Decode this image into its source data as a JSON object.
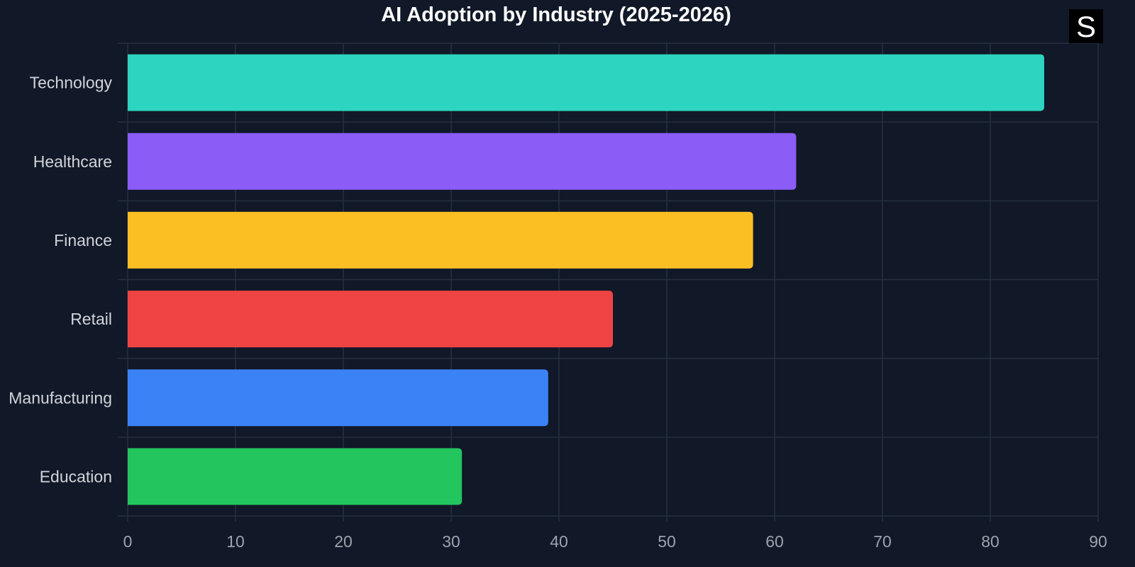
{
  "chart_data": {
    "type": "bar",
    "orientation": "horizontal",
    "title": "AI Adoption by Industry (2025-2026)",
    "xlabel": "",
    "ylabel": "",
    "categories": [
      "Technology",
      "Healthcare",
      "Finance",
      "Retail",
      "Manufacturing",
      "Education"
    ],
    "values": [
      85,
      62,
      58,
      45,
      39,
      31
    ],
    "colors": [
      "#2dd4bf",
      "#8b5cf6",
      "#fbbf24",
      "#ef4444",
      "#3b82f6",
      "#22c55e"
    ],
    "xlim": [
      0,
      90
    ],
    "xticks": [
      0,
      10,
      20,
      30,
      40,
      50,
      60,
      70,
      80,
      90
    ],
    "grid": true,
    "legend": "none"
  },
  "logo": {
    "text": "S",
    "background": "#000000"
  },
  "theme": {
    "background": "#111827"
  }
}
